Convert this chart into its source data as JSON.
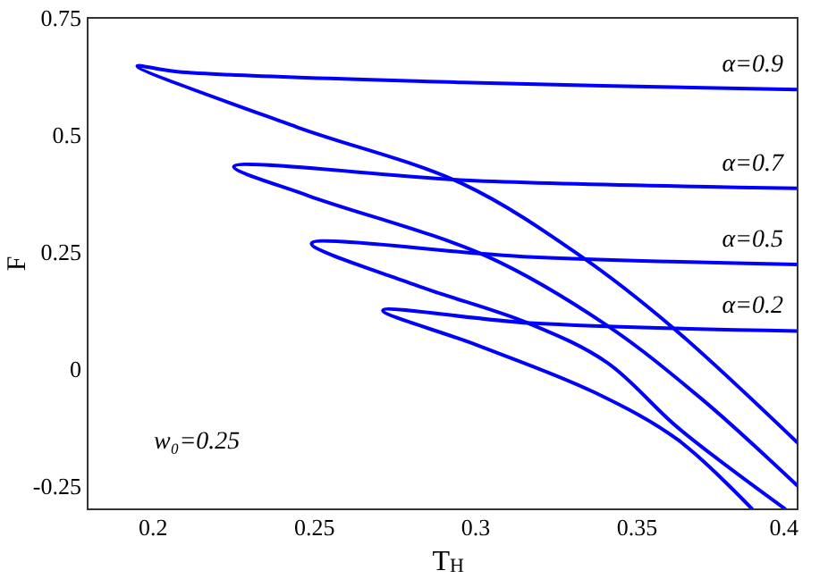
{
  "chart_data": {
    "type": "line",
    "xlabel": "T$_{H}$",
    "ylabel": "F",
    "xlim": [
      0.18,
      0.4
    ],
    "xticks": [
      0.2,
      0.25,
      0.3,
      0.35,
      0.4
    ],
    "ylim": [
      -0.3,
      0.75
    ],
    "yticks": [
      -0.25,
      0,
      0.25,
      0.5,
      0.75
    ],
    "grid": false,
    "marker": "none",
    "line_style": "solid",
    "annotations": [
      "w₀=0.25"
    ],
    "series": [
      {
        "name": "α=0.9",
        "color": "#0000ff",
        "x": [
          0.4,
          0.296,
          0.2078,
          0.1954,
          0.2447,
          0.296,
          0.333,
          0.361,
          0.4
        ],
        "values": [
          0.597,
          0.612,
          0.635,
          0.647,
          0.517,
          0.396,
          0.24,
          0.09,
          -0.158
        ]
      },
      {
        "name": "α=0.7",
        "color": "#0000ff",
        "x": [
          0.4,
          0.3,
          0.2253,
          0.2484,
          0.3039,
          0.3409,
          0.3704,
          0.4
        ],
        "values": [
          0.386,
          0.402,
          0.432,
          0.37,
          0.24,
          0.093,
          -0.065,
          -0.25
        ]
      },
      {
        "name": "α=0.5",
        "color": "#0000ff",
        "x": [
          0.4,
          0.315,
          0.2494,
          0.2817,
          0.3168,
          0.3409,
          0.363,
          0.3963
        ],
        "values": [
          0.223,
          0.24,
          0.268,
          0.179,
          0.097,
          0.014,
          -0.126,
          -0.3
        ]
      },
      {
        "name": "α=0.2",
        "color": "#0000ff",
        "x": [
          0.4,
          0.317,
          0.2715,
          0.3002,
          0.337,
          0.363,
          0.386
        ],
        "values": [
          0.081,
          0.098,
          0.125,
          0.052,
          -0.05,
          -0.152,
          -0.3
        ]
      }
    ]
  }
}
